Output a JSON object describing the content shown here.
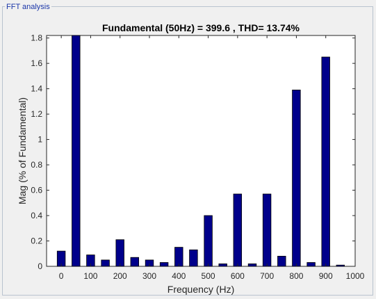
{
  "panel": {
    "label": "FFT analysis"
  },
  "chart_data": {
    "type": "bar",
    "title": "Fundamental (50Hz) = 399.6 , THD= 13.74%",
    "xlabel": "Frequency (Hz)",
    "ylabel": "Mag (% of Fundamental)",
    "xlim": [
      -50,
      1000
    ],
    "ylim": [
      0,
      1.82
    ],
    "xticks": [
      "0",
      "100",
      "200",
      "300",
      "400",
      "500",
      "600",
      "700",
      "800",
      "900",
      "1000"
    ],
    "yticks": [
      "0",
      "0.2",
      "0.4",
      "0.6",
      "0.8",
      "1",
      "1.2",
      "1.4",
      "1.6",
      "1.8"
    ],
    "bar_color": "#00008b",
    "grid": false,
    "x": [
      0,
      50,
      100,
      150,
      200,
      250,
      300,
      350,
      400,
      450,
      500,
      550,
      600,
      650,
      700,
      750,
      800,
      850,
      900,
      950
    ],
    "values": [
      0.12,
      1.82,
      0.09,
      0.05,
      0.21,
      0.07,
      0.05,
      0.03,
      0.15,
      0.13,
      0.4,
      0.02,
      0.57,
      0.02,
      0.57,
      0.08,
      1.39,
      0.03,
      1.65,
      0.01
    ]
  }
}
